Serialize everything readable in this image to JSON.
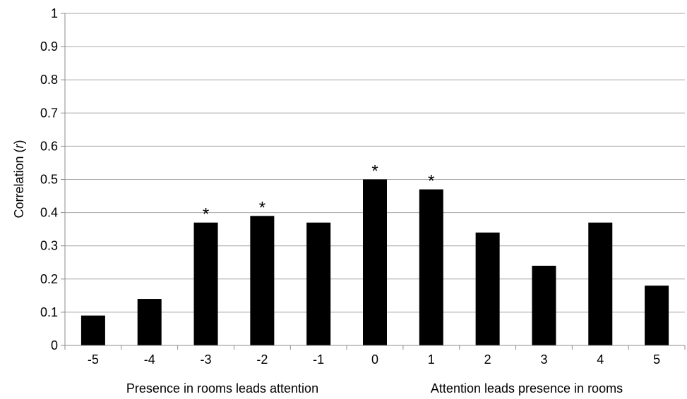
{
  "chart_data": {
    "type": "bar",
    "title": "",
    "categories": [
      "-5",
      "-4",
      "-3",
      "-2",
      "-1",
      "0",
      "1",
      "2",
      "3",
      "4",
      "5"
    ],
    "values": [
      0.09,
      0.14,
      0.37,
      0.39,
      0.37,
      0.5,
      0.47,
      0.34,
      0.24,
      0.37,
      0.18
    ],
    "significance": [
      "",
      "",
      "*",
      "*",
      "",
      "*",
      "*",
      "",
      "",
      "",
      ""
    ],
    "ylabel_prefix": "Correlation (",
    "ylabel_var": "r",
    "ylabel_suffix": ")",
    "xlabel_left": "Presence in rooms leads attention",
    "xlabel_right": "Attention leads presence in rooms",
    "ylim": [
      0,
      1
    ],
    "yticks": [
      "0",
      "0.1",
      "0.2",
      "0.3",
      "0.4",
      "0.5",
      "0.6",
      "0.7",
      "0.8",
      "0.9",
      "1"
    ],
    "grid": true,
    "bar_color": "#000000",
    "grid_color": "#a6a6a6"
  }
}
